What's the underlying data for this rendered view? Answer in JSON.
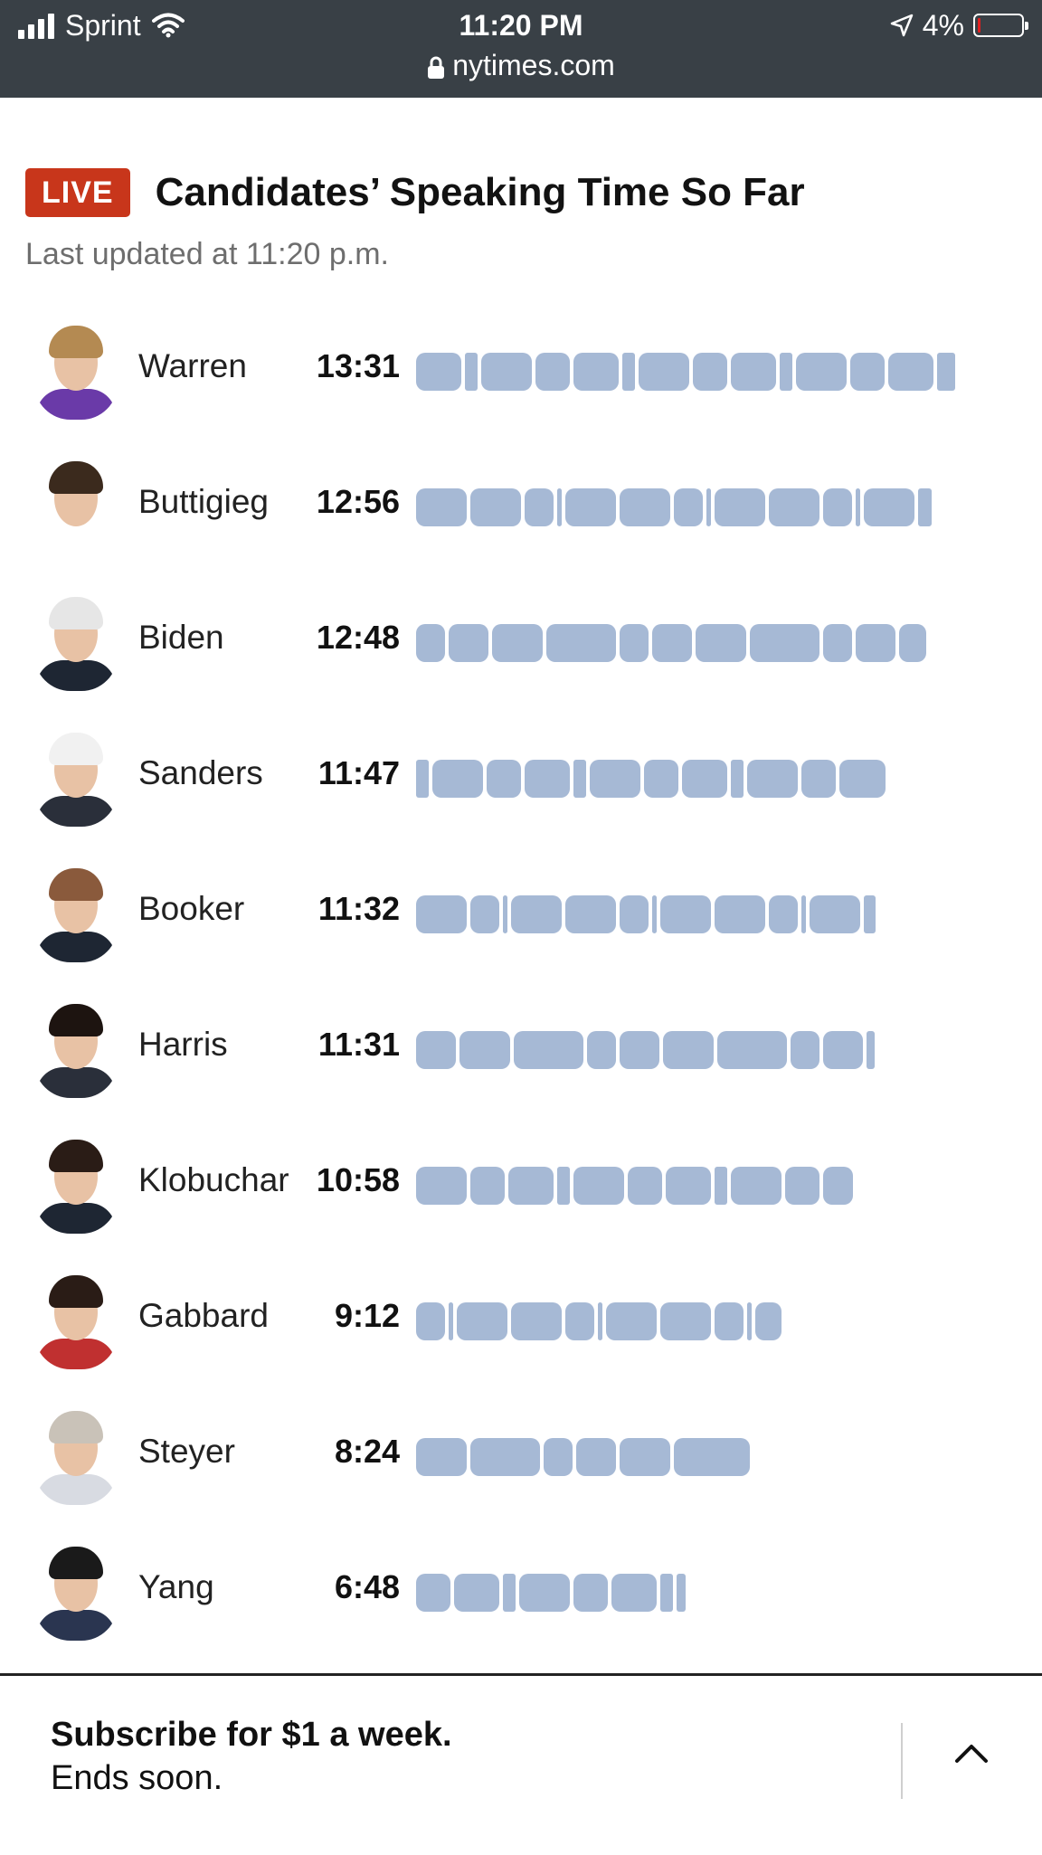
{
  "status_bar": {
    "carrier": "Sprint",
    "time": "11:20 PM",
    "url": "nytimes.com",
    "battery": "4%"
  },
  "header": {
    "live_badge": "LIVE",
    "title": "Candidates’ Speaking Time So Far",
    "updated": "Last updated at 11:20 p.m."
  },
  "candidates": [
    {
      "name": "Warren",
      "time": "13:31",
      "seconds": 811,
      "hair": "#b48a52",
      "body": "#6a3aa8"
    },
    {
      "name": "Buttigieg",
      "time": "12:56",
      "seconds": 776,
      "hair": "#3b2a1d",
      "body": "#ffffff"
    },
    {
      "name": "Biden",
      "time": "12:48",
      "seconds": 768,
      "hair": "#e6e6e6",
      "body": "#1e2633"
    },
    {
      "name": "Sanders",
      "time": "11:47",
      "seconds": 707,
      "hair": "#f1f1f1",
      "body": "#2a2f3a"
    },
    {
      "name": "Booker",
      "time": "11:32",
      "seconds": 692,
      "hair": "#8a5a3c",
      "body": "#1e2633"
    },
    {
      "name": "Harris",
      "time": "11:31",
      "seconds": 691,
      "hair": "#1d1410",
      "body": "#2a2f3a"
    },
    {
      "name": "Klobuchar",
      "time": "10:58",
      "seconds": 658,
      "hair": "#2a1c16",
      "body": "#1e2633"
    },
    {
      "name": "Gabbard",
      "time": "9:12",
      "seconds": 552,
      "hair": "#2a1c16",
      "body": "#c03030"
    },
    {
      "name": "Steyer",
      "time": "8:24",
      "seconds": 504,
      "hair": "#c9c2b8",
      "body": "#d8dbe2"
    },
    {
      "name": "Yang",
      "time": "6:48",
      "seconds": 408,
      "hair": "#1a1a1a",
      "body": "#2a3550"
    }
  ],
  "footer": {
    "line1": "Subscribe for $1 a week.",
    "line2": "Ends soon."
  },
  "colors": {
    "bar": "#a6b9d5",
    "live": "#c8361b",
    "status_bg": "#394046"
  }
}
